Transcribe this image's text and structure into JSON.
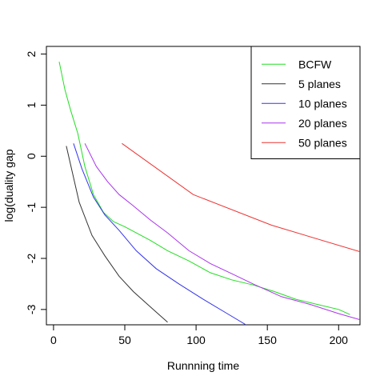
{
  "chart_data": {
    "type": "line",
    "title": "",
    "xlabel": "Runnning time",
    "ylabel": "log(duality gap",
    "xlim": [
      -5,
      215
    ],
    "ylim": [
      -3.3,
      2.15
    ],
    "x_ticks": [
      0,
      50,
      100,
      150,
      200
    ],
    "y_ticks": [
      -3,
      -2,
      -1,
      0,
      1,
      2
    ],
    "grid": false,
    "legend_position": "top-right",
    "series": [
      {
        "name": "BCFW",
        "color": "#22dd22",
        "x": [
          4,
          8,
          12,
          17,
          22,
          28,
          35,
          42,
          50,
          58,
          68,
          80,
          95,
          110,
          125,
          140,
          155,
          170,
          185,
          200,
          208
        ],
        "y": [
          1.85,
          1.3,
          0.9,
          0.45,
          -0.2,
          -0.75,
          -1.1,
          -1.28,
          -1.38,
          -1.5,
          -1.65,
          -1.85,
          -2.05,
          -2.28,
          -2.42,
          -2.52,
          -2.65,
          -2.8,
          -2.9,
          -3.0,
          -3.1
        ]
      },
      {
        "name": "5 planes",
        "color": "#333333",
        "x": [
          9,
          18,
          27,
          36,
          46,
          56,
          66,
          76,
          80
        ],
        "y": [
          0.2,
          -0.9,
          -1.55,
          -1.95,
          -2.35,
          -2.65,
          -2.9,
          -3.15,
          -3.25
        ]
      },
      {
        "name": "10 planes",
        "color": "#3333ee",
        "x": [
          14,
          20,
          28,
          36,
          46,
          58,
          72,
          88,
          105,
          120,
          135
        ],
        "y": [
          0.25,
          -0.25,
          -0.8,
          -1.15,
          -1.45,
          -1.85,
          -2.2,
          -2.5,
          -2.8,
          -3.05,
          -3.3
        ]
      },
      {
        "name": "20 planes",
        "color": "#aa33ee",
        "x": [
          22,
          30,
          38,
          46,
          55,
          68,
          80,
          95,
          110,
          125,
          140,
          160,
          180,
          200,
          215
        ],
        "y": [
          0.25,
          -0.2,
          -0.5,
          -0.75,
          -0.95,
          -1.25,
          -1.5,
          -1.85,
          -2.1,
          -2.3,
          -2.5,
          -2.75,
          -2.9,
          -3.08,
          -3.2
        ]
      },
      {
        "name": "50 planes",
        "color": "#ee3333",
        "x": [
          48,
          98,
          153,
          215
        ],
        "y": [
          0.25,
          -0.75,
          -1.35,
          -1.87
        ]
      }
    ]
  }
}
